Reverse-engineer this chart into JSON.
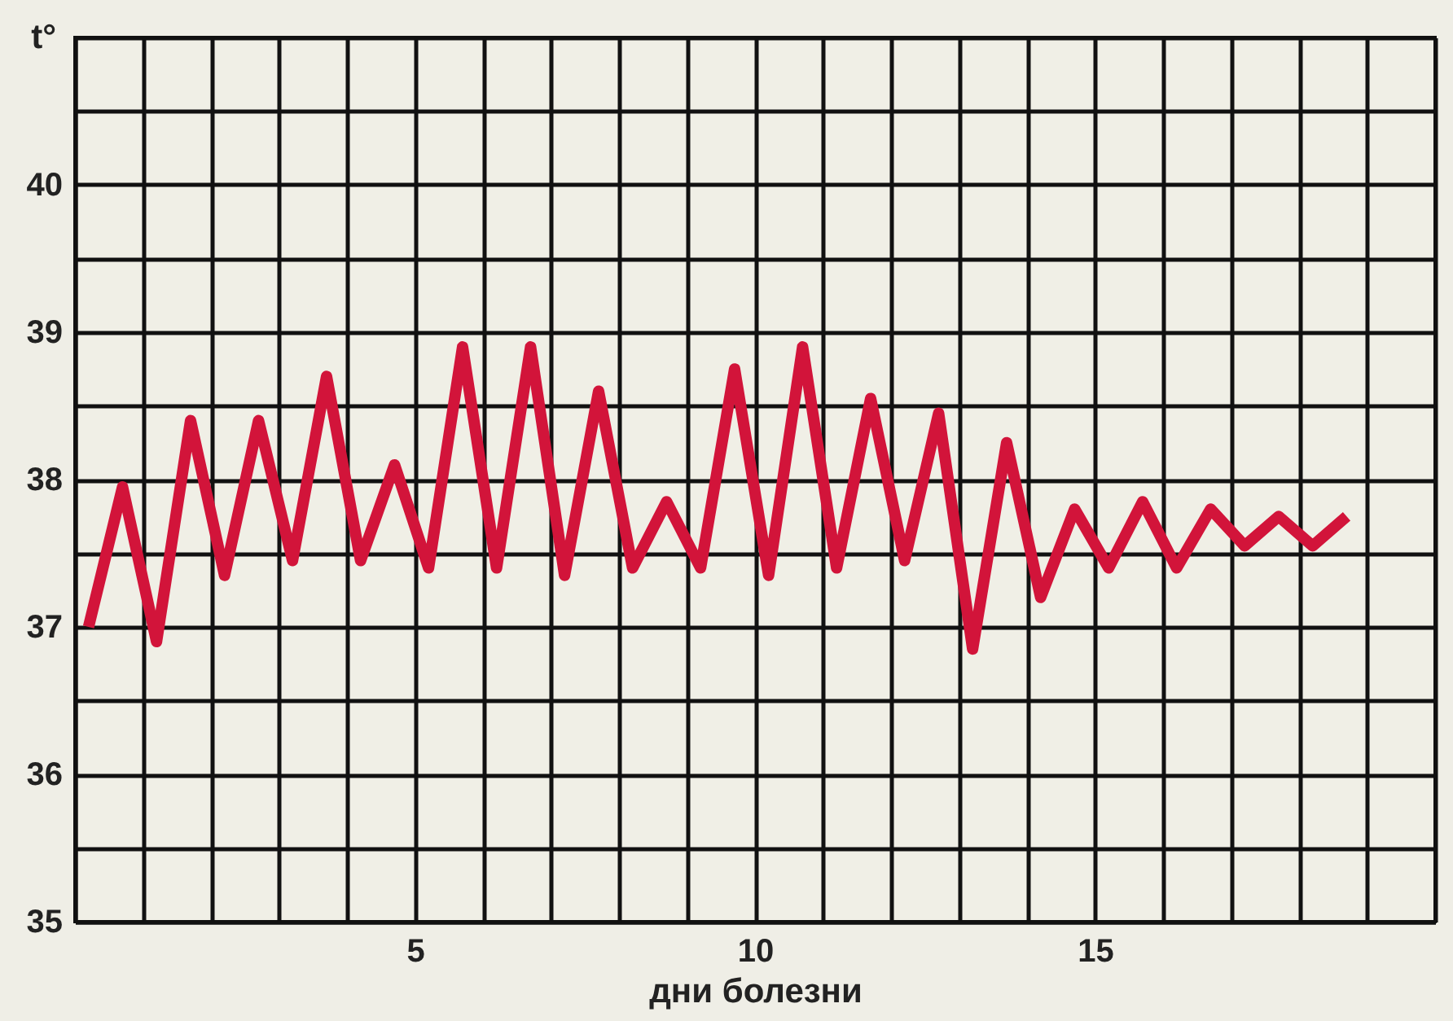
{
  "chart_data": {
    "type": "line",
    "ylabel": "t°",
    "xlabel": "дни болезни",
    "x": [
      0.2,
      0.7,
      1.2,
      1.7,
      2.2,
      2.7,
      3.2,
      3.7,
      4.2,
      4.7,
      5.2,
      5.7,
      6.2,
      6.7,
      7.2,
      7.7,
      8.2,
      8.7,
      9.2,
      9.7,
      10.2,
      10.7,
      11.2,
      11.7,
      12.2,
      12.7,
      13.2,
      13.7,
      14.2,
      14.7,
      15.2,
      15.7,
      16.2,
      16.7,
      17.2,
      17.7,
      18.2,
      18.7
    ],
    "series": [
      {
        "color": "#d2143a",
        "values": [
          37.0,
          37.95,
          36.9,
          38.4,
          37.35,
          38.4,
          37.45,
          38.7,
          37.45,
          38.1,
          37.4,
          38.9,
          37.4,
          38.9,
          37.35,
          38.6,
          37.4,
          37.85,
          37.4,
          38.75,
          37.35,
          38.9,
          37.4,
          38.55,
          37.45,
          38.45,
          36.85,
          38.25,
          37.2,
          37.8,
          37.4,
          37.85,
          37.4,
          37.8,
          37.55,
          37.75,
          37.55,
          37.75
        ]
      }
    ],
    "xlim": [
      0,
      20
    ],
    "ylim": [
      35,
      41
    ],
    "xticks": [
      {
        "value": 0,
        "label": null
      },
      {
        "value": 1,
        "label": null
      },
      {
        "value": 2,
        "label": null
      },
      {
        "value": 3,
        "label": null
      },
      {
        "value": 4,
        "label": null
      },
      5,
      {
        "value": 6,
        "label": null
      },
      {
        "value": 7,
        "label": null
      },
      {
        "value": 8,
        "label": null
      },
      {
        "value": 9,
        "label": null
      },
      10,
      {
        "value": 11,
        "label": null
      },
      {
        "value": 12,
        "label": null
      },
      {
        "value": 13,
        "label": null
      },
      {
        "value": 14,
        "label": null
      },
      15,
      {
        "value": 16,
        "label": null
      },
      {
        "value": 17,
        "label": null
      },
      {
        "value": 18,
        "label": null
      },
      {
        "value": 19,
        "label": null
      },
      {
        "value": 20,
        "label": null
      }
    ],
    "yticks": [
      35,
      {
        "value": 35.5,
        "label": null
      },
      36,
      {
        "value": 36.5,
        "label": null
      },
      37,
      {
        "value": 37.5,
        "label": null
      },
      38,
      {
        "value": 38.5,
        "label": null
      },
      39,
      {
        "value": 39.5,
        "label": null
      },
      40,
      {
        "value": 40.5,
        "label": null
      },
      {
        "value": 41,
        "label": null
      }
    ],
    "grid": true,
    "marker": "none",
    "line_style": "solid"
  }
}
